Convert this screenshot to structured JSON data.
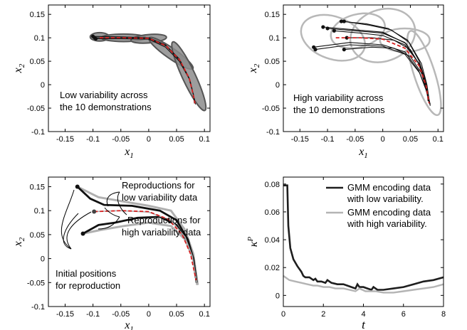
{
  "chart_data": [
    {
      "type": "line",
      "panel": "top-left",
      "xlabel": "x1",
      "ylabel": "x2",
      "xlim": [
        -0.18,
        0.11
      ],
      "ylim": [
        -0.1,
        0.17
      ],
      "xticks": [
        -0.15,
        -0.1,
        -0.05,
        0,
        0.05,
        0.1
      ],
      "xticklabels": [
        "-0.15",
        "-0.1",
        "-0.05",
        "0",
        "0.05",
        "0.1"
      ],
      "yticks": [
        -0.1,
        -0.05,
        0,
        0.05,
        0.1,
        0.15
      ],
      "yticklabels": [
        "-0.1",
        "-0.05",
        "0",
        "0.05",
        "0.1",
        "0.15"
      ],
      "annotation": [
        "Low variability across",
        "the 10 demonstrations"
      ],
      "ellipses": [
        {
          "cx": -0.088,
          "cy": 0.102,
          "rx": 0.017,
          "ry": 0.009,
          "angle": 0
        },
        {
          "cx": -0.045,
          "cy": 0.1,
          "rx": 0.04,
          "ry": 0.008,
          "angle": 0
        },
        {
          "cx": 0.0,
          "cy": 0.098,
          "rx": 0.032,
          "ry": 0.009,
          "angle": 5
        },
        {
          "cx": 0.04,
          "cy": 0.067,
          "rx": 0.048,
          "ry": 0.011,
          "angle": -35
        },
        {
          "cx": 0.072,
          "cy": 0.018,
          "rx": 0.068,
          "ry": 0.014,
          "angle": -65
        }
      ],
      "demonstrations": [
        {
          "start": [
            -0.1,
            0.103
          ],
          "points": [
            [
              -0.1,
              0.103
            ],
            [
              -0.05,
              0.102
            ],
            [
              0.0,
              0.1
            ],
            [
              0.03,
              0.085
            ],
            [
              0.055,
              0.055
            ],
            [
              0.072,
              0.015
            ],
            [
              0.08,
              -0.02
            ],
            [
              0.082,
              -0.04
            ]
          ]
        },
        {
          "start": [
            -0.097,
            0.1
          ],
          "points": [
            [
              -0.097,
              0.1
            ],
            [
              -0.05,
              0.1
            ],
            [
              0.0,
              0.098
            ],
            [
              0.032,
              0.082
            ],
            [
              0.057,
              0.05
            ],
            [
              0.074,
              0.01
            ],
            [
              0.081,
              -0.025
            ],
            [
              0.084,
              -0.042
            ]
          ]
        },
        {
          "start": [
            -0.095,
            0.098
          ],
          "points": [
            [
              -0.095,
              0.098
            ],
            [
              -0.05,
              0.098
            ],
            [
              0.0,
              0.097
            ],
            [
              0.03,
              0.08
            ],
            [
              0.055,
              0.05
            ],
            [
              0.073,
              0.012
            ],
            [
              0.08,
              -0.02
            ],
            [
              0.083,
              -0.04
            ]
          ]
        }
      ],
      "reproduction": [
        [
          -0.088,
          0.1
        ],
        [
          -0.05,
          0.1
        ],
        [
          0.0,
          0.099
        ],
        [
          0.031,
          0.083
        ],
        [
          0.056,
          0.052
        ],
        [
          0.073,
          0.013
        ],
        [
          0.08,
          -0.022
        ],
        [
          0.083,
          -0.04
        ]
      ]
    },
    {
      "type": "line",
      "panel": "top-right",
      "xlabel": "x1",
      "ylabel": "x2",
      "xlim": [
        -0.18,
        0.11
      ],
      "ylim": [
        -0.1,
        0.17
      ],
      "xticks": [
        -0.15,
        -0.1,
        -0.05,
        0,
        0.05,
        0.1
      ],
      "xticklabels": [
        "-0.15",
        "-0.1",
        "-0.05",
        "0",
        "0.05",
        "0.1"
      ],
      "yticks": [
        -0.1,
        -0.05,
        0,
        0.05,
        0.1,
        0.15
      ],
      "yticklabels": [
        "-0.1",
        "-0.05",
        "0",
        "0.05",
        "0.1",
        "0.15"
      ],
      "annotation": [
        "High variability across",
        "the 10 demonstrations"
      ],
      "ellipses": [
        {
          "cx": -0.09,
          "cy": 0.1,
          "rx": 0.06,
          "ry": 0.045,
          "angle": -20
        },
        {
          "cx": -0.045,
          "cy": 0.115,
          "rx": 0.05,
          "ry": 0.035,
          "angle": 15
        },
        {
          "cx": 0.0,
          "cy": 0.105,
          "rx": 0.06,
          "ry": 0.055,
          "angle": 20
        },
        {
          "cx": 0.04,
          "cy": 0.095,
          "rx": 0.045,
          "ry": 0.025,
          "angle": 0
        },
        {
          "cx": 0.075,
          "cy": 0.025,
          "rx": 0.08,
          "ry": 0.022,
          "angle": -72
        }
      ],
      "demonstrations": [
        {
          "start": [
            -0.125,
            0.08
          ],
          "points": [
            [
              -0.125,
              0.08
            ],
            [
              -0.06,
              0.09
            ],
            [
              0.0,
              0.085
            ],
            [
              0.04,
              0.07
            ],
            [
              0.065,
              0.03
            ],
            [
              0.078,
              -0.01
            ],
            [
              0.085,
              -0.04
            ]
          ]
        },
        {
          "start": [
            -0.122,
            0.075
          ],
          "points": [
            [
              -0.122,
              0.075
            ],
            [
              -0.06,
              0.085
            ],
            [
              0.0,
              0.082
            ],
            [
              0.04,
              0.065
            ],
            [
              0.067,
              0.025
            ],
            [
              0.08,
              -0.015
            ],
            [
              0.086,
              -0.042
            ]
          ]
        },
        {
          "start": [
            -0.1,
            0.12
          ],
          "points": [
            [
              -0.1,
              0.12
            ],
            [
              -0.05,
              0.115
            ],
            [
              0.0,
              0.11
            ],
            [
              0.04,
              0.09
            ],
            [
              0.065,
              0.045
            ],
            [
              0.077,
              0.0
            ],
            [
              0.083,
              -0.035
            ]
          ]
        },
        {
          "start": [
            -0.108,
            0.123
          ],
          "points": [
            [
              -0.108,
              0.123
            ],
            [
              -0.05,
              0.117
            ],
            [
              0.0,
              0.112
            ],
            [
              0.042,
              0.088
            ],
            [
              0.068,
              0.04
            ],
            [
              0.079,
              -0.005
            ],
            [
              0.084,
              -0.038
            ]
          ]
        },
        {
          "start": [
            -0.075,
            0.135
          ],
          "points": [
            [
              -0.075,
              0.135
            ],
            [
              -0.03,
              0.13
            ],
            [
              0.01,
              0.12
            ],
            [
              0.045,
              0.095
            ],
            [
              0.066,
              0.05
            ],
            [
              0.078,
              0.005
            ],
            [
              0.082,
              -0.035
            ]
          ]
        },
        {
          "start": [
            -0.07,
            0.135
          ],
          "points": [
            [
              -0.07,
              0.135
            ],
            [
              -0.025,
              0.127
            ],
            [
              0.015,
              0.117
            ],
            [
              0.048,
              0.09
            ],
            [
              0.07,
              0.045
            ],
            [
              0.08,
              0.0
            ],
            [
              0.085,
              -0.04
            ]
          ]
        },
        {
          "start": [
            -0.088,
            0.115
          ],
          "points": [
            [
              -0.088,
              0.115
            ],
            [
              -0.04,
              0.11
            ],
            [
              0.0,
              0.105
            ],
            [
              0.04,
              0.085
            ],
            [
              0.066,
              0.045
            ],
            [
              0.078,
              0.002
            ],
            [
              0.084,
              -0.038
            ]
          ]
        },
        {
          "start": [
            -0.065,
            0.1
          ],
          "points": [
            [
              -0.065,
              0.1
            ],
            [
              -0.02,
              0.1
            ],
            [
              0.02,
              0.095
            ],
            [
              0.05,
              0.075
            ],
            [
              0.07,
              0.035
            ],
            [
              0.08,
              -0.01
            ],
            [
              0.084,
              -0.04
            ]
          ]
        },
        {
          "start": [
            -0.07,
            0.075
          ],
          "points": [
            [
              -0.07,
              0.075
            ],
            [
              -0.02,
              0.08
            ],
            [
              0.02,
              0.078
            ],
            [
              0.05,
              0.06
            ],
            [
              0.07,
              0.025
            ],
            [
              0.08,
              -0.015
            ],
            [
              0.086,
              -0.045
            ]
          ]
        }
      ],
      "reproduction": [
        [
          -0.085,
          0.1
        ],
        [
          -0.04,
          0.1
        ],
        [
          0.0,
          0.097
        ],
        [
          0.04,
          0.078
        ],
        [
          0.066,
          0.04
        ],
        [
          0.078,
          0.0
        ],
        [
          0.084,
          -0.04
        ]
      ]
    },
    {
      "type": "line",
      "panel": "bottom-left",
      "xlabel": "x1",
      "ylabel": "x2",
      "xlim": [
        -0.18,
        0.11
      ],
      "ylim": [
        -0.1,
        0.17
      ],
      "xticks": [
        -0.15,
        -0.1,
        -0.05,
        0,
        0.05,
        0.1
      ],
      "xticklabels": [
        "-0.15",
        "-0.1",
        "-0.05",
        "0",
        "0.05",
        "0.1"
      ],
      "yticks": [
        -0.1,
        -0.05,
        0,
        0.05,
        0.1,
        0.15
      ],
      "yticklabels": [
        "-0.1",
        "-0.05",
        "0",
        "0.05",
        "0.1",
        "0.15"
      ],
      "annotations": {
        "low": [
          "Reproductions for",
          "low variability data"
        ],
        "high": [
          "Reproductions for",
          "high variability data"
        ],
        "init": [
          "Initial positions",
          "for reproduction"
        ]
      },
      "reproductions_low": [
        {
          "start": [
            -0.128,
            0.15
          ],
          "points": [
            [
              -0.128,
              0.15
            ],
            [
              -0.105,
              0.125
            ],
            [
              -0.08,
              0.112
            ],
            [
              -0.03,
              0.11
            ],
            [
              0.02,
              0.1
            ],
            [
              0.05,
              0.08
            ],
            [
              0.07,
              0.04
            ],
            [
              0.08,
              0.0
            ],
            [
              0.086,
              -0.05
            ]
          ]
        },
        {
          "start": [
            -0.118,
            0.052
          ],
          "points": [
            [
              -0.118,
              0.052
            ],
            [
              -0.09,
              0.07
            ],
            [
              -0.06,
              0.075
            ],
            [
              -0.02,
              0.085
            ],
            [
              0.02,
              0.087
            ],
            [
              0.05,
              0.07
            ],
            [
              0.07,
              0.035
            ],
            [
              0.08,
              0.0
            ],
            [
              0.086,
              -0.05
            ]
          ]
        }
      ],
      "reproductions_high": [
        {
          "points": [
            [
              -0.128,
              0.15
            ],
            [
              -0.09,
              0.128
            ],
            [
              -0.05,
              0.12
            ],
            [
              0.0,
              0.11
            ],
            [
              0.04,
              0.1
            ],
            [
              0.065,
              0.06
            ],
            [
              0.08,
              0.01
            ],
            [
              0.088,
              -0.055
            ]
          ]
        },
        {
          "points": [
            [
              -0.118,
              0.052
            ],
            [
              -0.085,
              0.06
            ],
            [
              -0.045,
              0.068
            ],
            [
              0.0,
              0.075
            ],
            [
              0.04,
              0.068
            ],
            [
              0.065,
              0.04
            ],
            [
              0.08,
              0.0
            ],
            [
              0.087,
              -0.055
            ]
          ]
        }
      ],
      "reference_start": [
        -0.098,
        0.098
      ],
      "reference": [
        [
          -0.098,
          0.098
        ],
        [
          -0.05,
          0.1
        ],
        [
          0.0,
          0.098
        ],
        [
          0.035,
          0.082
        ],
        [
          0.06,
          0.05
        ],
        [
          0.075,
          0.01
        ],
        [
          0.085,
          -0.045
        ]
      ],
      "reference_high": [
        [
          -0.098,
          0.098
        ],
        [
          -0.05,
          0.1
        ],
        [
          0.0,
          0.097
        ],
        [
          0.04,
          0.08
        ],
        [
          0.065,
          0.045
        ],
        [
          0.078,
          0.005
        ],
        [
          0.086,
          -0.05
        ]
      ]
    },
    {
      "type": "line",
      "panel": "bottom-right",
      "xlabel": "t",
      "ylabel": "κ^P",
      "xlim": [
        0,
        8
      ],
      "ylim": [
        -0.008,
        0.085
      ],
      "xticks": [
        0,
        2,
        4,
        6,
        8
      ],
      "xticklabels": [
        "0",
        "2",
        "4",
        "6",
        "8"
      ],
      "yticks": [
        0,
        0.02,
        0.04,
        0.06,
        0.08
      ],
      "yticklabels": [
        "0",
        "0.02",
        "0.04",
        "0.06",
        "0.08"
      ],
      "legend_placement": "top-right",
      "series": [
        {
          "name": "GMM encoding data with low variability.",
          "legend_lines": [
            "GMM encoding data",
            "with low variability."
          ],
          "color": "#1e1e1e",
          "x": [
            0,
            0.05,
            0.2,
            0.25,
            0.35,
            0.5,
            0.7,
            0.9,
            1.0,
            1.1,
            1.3,
            1.5,
            1.6,
            1.7,
            1.9,
            2.1,
            2.2,
            2.4,
            2.7,
            3.0,
            3.2,
            3.4,
            3.6,
            3.7,
            3.8,
            4.0,
            4.2,
            4.4,
            4.5,
            4.7,
            5.0,
            5.5,
            6.0,
            6.5,
            7.0,
            7.5,
            8.0
          ],
          "y": [
            0.079,
            0.079,
            0.079,
            0.05,
            0.034,
            0.026,
            0.021,
            0.017,
            0.014,
            0.013,
            0.013,
            0.011,
            0.012,
            0.01,
            0.01,
            0.009,
            0.011,
            0.009,
            0.008,
            0.008,
            0.007,
            0.006,
            0.005,
            0.008,
            0.006,
            0.006,
            0.005,
            0.004,
            0.006,
            0.004,
            0.004,
            0.005,
            0.006,
            0.008,
            0.01,
            0.011,
            0.013
          ]
        },
        {
          "name": "GMM encoding data with high variability.",
          "legend_lines": [
            "GMM encoding data",
            "with high variability."
          ],
          "color": "#b4b4b4",
          "x": [
            0,
            0.3,
            0.6,
            0.9,
            1.2,
            1.5,
            1.7,
            2.0,
            2.3,
            2.6,
            3.0,
            3.3,
            3.6,
            3.8,
            4.1,
            4.4,
            4.6,
            5.0,
            5.5,
            6.0,
            6.5,
            7.0,
            7.5,
            8.0
          ],
          "y": [
            0.014,
            0.011,
            0.01,
            0.009,
            0.008,
            0.007,
            0.007,
            0.006,
            0.006,
            0.005,
            0.005,
            0.004,
            0.003,
            0.005,
            0.003,
            0.003,
            0.003,
            0.002,
            0.002,
            0.003,
            0.004,
            0.005,
            0.006,
            0.008
          ]
        }
      ]
    }
  ]
}
